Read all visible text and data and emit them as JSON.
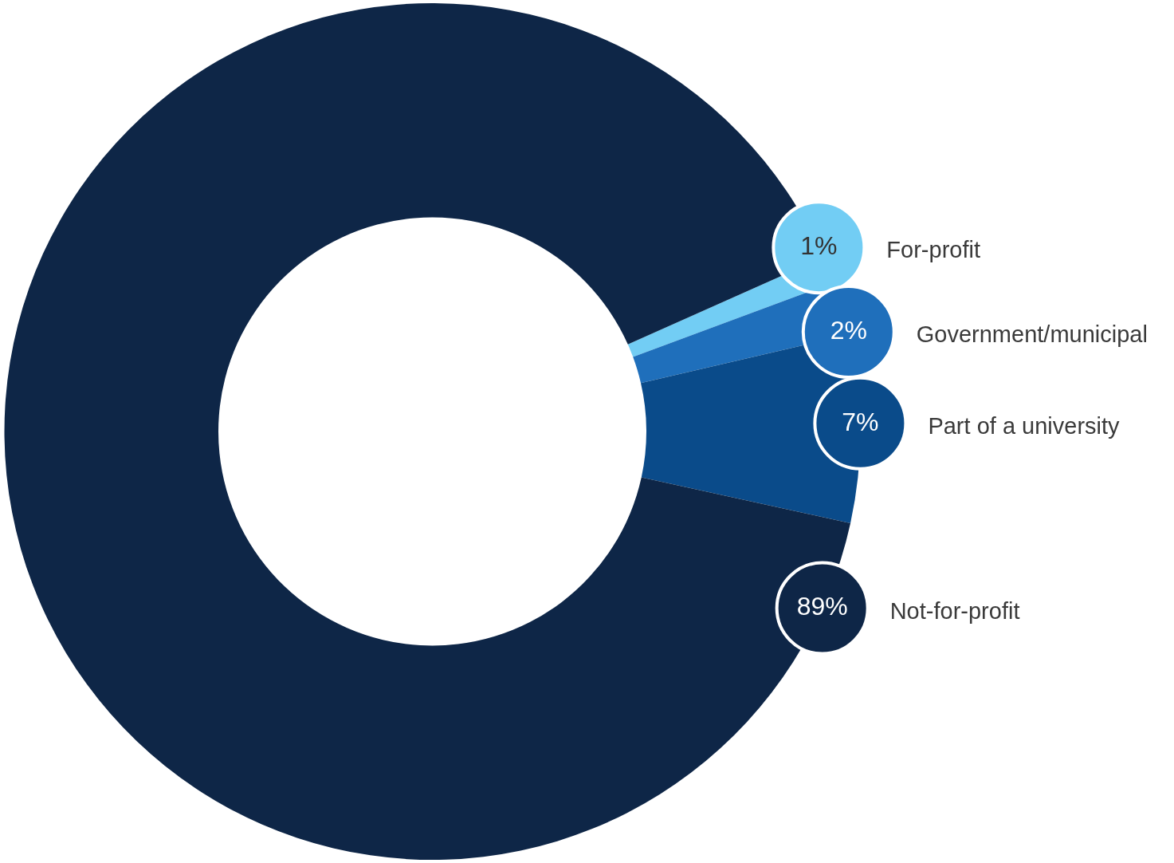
{
  "chart_data": {
    "type": "donut",
    "categories": [
      "For-profit",
      "Government/municipal",
      "Part of a university",
      "Not-for-profit"
    ],
    "values": [
      1,
      2,
      7,
      89
    ],
    "colors": [
      "#72cdf4",
      "#1f6fbb",
      "#0a4b8a",
      "#0e2647"
    ],
    "value_labels": [
      "1%",
      "2%",
      "7%",
      "89%"
    ],
    "legend": false
  }
}
